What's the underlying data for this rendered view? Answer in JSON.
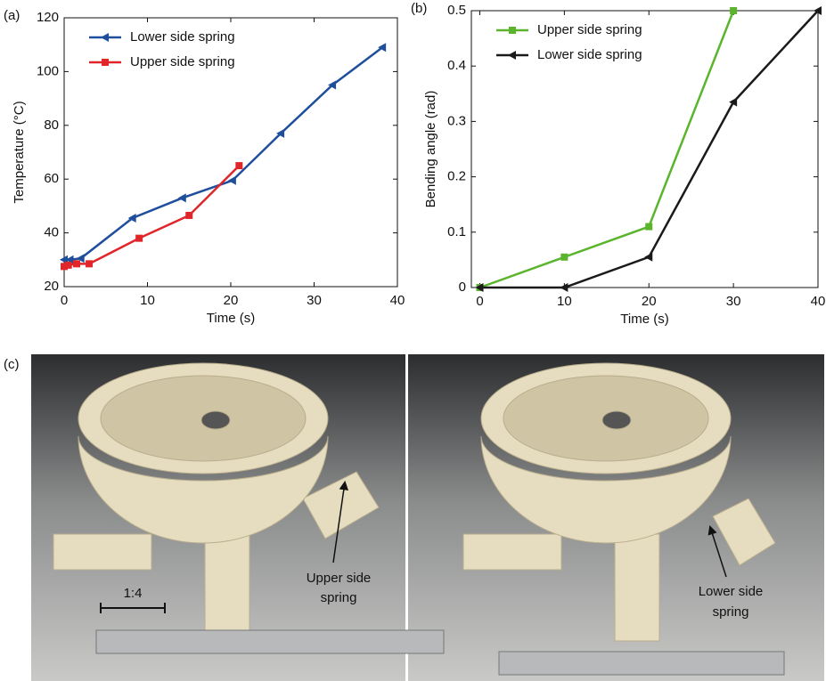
{
  "chart_data": [
    {
      "type": "line",
      "panel_label": "(a)",
      "x_label": "Time (s)",
      "y_label": "Temperature (°C)",
      "xlim": [
        0,
        40
      ],
      "ylim": [
        20,
        120
      ],
      "xticks": [
        0,
        10,
        20,
        30,
        40
      ],
      "yticks": [
        20,
        40,
        60,
        80,
        100,
        120
      ],
      "legend": "upper-left",
      "grid": false,
      "series": [
        {
          "name": "Lower side spring",
          "color": "#1f4e9c",
          "marker": "triangle-left",
          "x": [
            0,
            0.7,
            2,
            8.2,
            14.2,
            20.2,
            26,
            32.2,
            38.2
          ],
          "values": [
            30,
            30,
            30.5,
            45.5,
            53,
            59.5,
            77,
            95,
            109
          ]
        },
        {
          "name": "Upper side spring",
          "color": "#e0262a",
          "marker": "square",
          "x": [
            0,
            0.5,
            1.5,
            3,
            9,
            15,
            21
          ],
          "values": [
            27.5,
            28,
            28.5,
            28.5,
            38,
            46.5,
            65
          ]
        }
      ]
    },
    {
      "type": "line",
      "panel_label": "(b)",
      "x_label": "Time (s)",
      "y_label": "Bending angle (rad)",
      "xlim": [
        -1,
        40
      ],
      "ylim": [
        0,
        0.5
      ],
      "xticks": [
        0,
        10,
        20,
        30,
        40
      ],
      "yticks": [
        0,
        0.1,
        0.2,
        0.3,
        0.4,
        0.5
      ],
      "legend": "upper-left",
      "grid": false,
      "series": [
        {
          "name": "Upper side spring",
          "color": "#5ab42c",
          "marker": "square",
          "x": [
            0,
            10,
            20,
            30
          ],
          "values": [
            0,
            0.055,
            0.11,
            0.5
          ]
        },
        {
          "name": "Lower side spring",
          "color": "#1a1a1a",
          "marker": "triangle-left",
          "x": [
            0,
            10,
            20,
            30,
            40
          ],
          "values": [
            0,
            0,
            0.055,
            0.335,
            0.5
          ]
        }
      ]
    }
  ],
  "photos": {
    "panel_label": "(c)",
    "scale_label": "1:4",
    "left_annotation": [
      "Upper side",
      "spring"
    ],
    "right_annotation": [
      "Lower side",
      "spring"
    ]
  }
}
